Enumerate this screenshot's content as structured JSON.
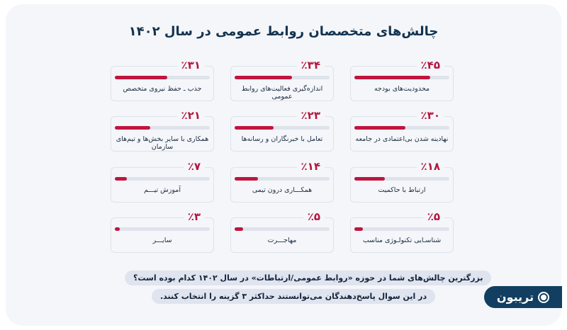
{
  "title": "چالش‌های متخصصان روابط عمومی در سال ۱۴۰۲",
  "colors": {
    "accent": "#c0153f",
    "track": "#dfe3ec",
    "title": "#13334f",
    "logo_bg": "#123f61",
    "background": "#f4f6fa"
  },
  "cards": [
    {
      "pct": "٪۴۵",
      "value": 45,
      "label": "محدودیت‌های بودجه"
    },
    {
      "pct": "٪۳۴",
      "value": 34,
      "label": "اندازه‌گیری فعالیت‌های روابط عمومی"
    },
    {
      "pct": "٪۳۱",
      "value": 31,
      "label": "جذب ـ حفظ نیروی متخصص"
    },
    {
      "pct": "٪۳۰",
      "value": 30,
      "label": "نهادینه شدن بی‌اعتمادی در جامعه"
    },
    {
      "pct": "٪۲۳",
      "value": 23,
      "label": "تعامل با خبرنگاران و رسانه‌ها"
    },
    {
      "pct": "٪۲۱",
      "value": 21,
      "label": "همکاری با سایر بخش‌ها و تیم‌های سازمان"
    },
    {
      "pct": "٪۱۸",
      "value": 18,
      "label": "ارتباط با حاکمیت"
    },
    {
      "pct": "٪۱۴",
      "value": 14,
      "label": "همکـــاری درون تیمی"
    },
    {
      "pct": "٪۷",
      "value": 7,
      "label": "آموزش تیـــم"
    },
    {
      "pct": "٪۵",
      "value": 5,
      "label": "شناسـایی تکنولـوژی مناسب"
    },
    {
      "pct": "٪۵",
      "value": 5,
      "label": "مهاجـــرت"
    },
    {
      "pct": "٪۳",
      "value": 3,
      "label": "سایـــر"
    }
  ],
  "question": {
    "line1": "بزرگترین چالش‌های شما در حوزه «روابط عمومی/ارتباطات» در سال ۱۴۰۲ کدام بوده است؟",
    "line2": "در این سوال پاسخ‌دهندگان می‌توانستند حداکثر ۳ گزینه را انتخاب کنند."
  },
  "logo": {
    "text": "تریبون"
  },
  "chart_data": {
    "type": "bar",
    "title": "چالش‌های متخصصان روابط عمومی در سال ۱۴۰۲",
    "categories": [
      "محدودیت‌های بودجه",
      "اندازه‌گیری فعالیت‌های روابط عمومی",
      "جذب ـ حفظ نیروی متخصص",
      "نهادینه شدن بی‌اعتمادی در جامعه",
      "تعامل با خبرنگاران و رسانه‌ها",
      "همکاری با سایر بخش‌ها و تیم‌های سازمان",
      "ارتباط با حاکمیت",
      "همکاری درون تیمی",
      "آموزش تیم",
      "شناسایی تکنولوژی مناسب",
      "مهاجرت",
      "سایر"
    ],
    "values": [
      45,
      34,
      31,
      30,
      23,
      21,
      18,
      14,
      7,
      5,
      5,
      3
    ],
    "unit": "%",
    "xlabel": "",
    "ylabel": "",
    "ylim": [
      0,
      100
    ],
    "orientation": "horizontal progress bars, 4x3 grid, RTL order",
    "grid": false,
    "legend": "none"
  }
}
